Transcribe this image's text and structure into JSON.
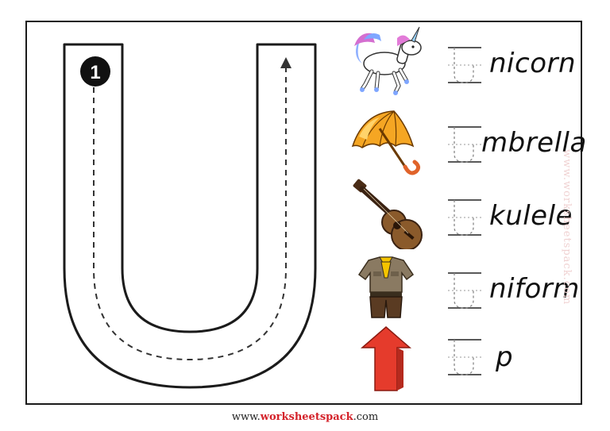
{
  "worksheet": {
    "step_number": "1",
    "watermark": "www.worksheetspack.com",
    "rows": [
      {
        "name": "unicorn",
        "icon": "unicorn-icon",
        "word": "nicorn"
      },
      {
        "name": "umbrella",
        "icon": "umbrella-icon",
        "word": "mbrella"
      },
      {
        "name": "ukulele",
        "icon": "ukulele-icon",
        "word": "kulele"
      },
      {
        "name": "uniform",
        "icon": "uniform-icon",
        "word": "niform"
      },
      {
        "name": "up",
        "icon": "up-arrow-icon",
        "word": "p"
      }
    ]
  },
  "footer": {
    "prefix": "www.",
    "brand": "worksheetspack",
    "suffix": ".com"
  },
  "colors": {
    "border": "#1b1b1b",
    "brand_red": "#d4222a",
    "umbrella_orange": "#f5a623",
    "arrow_red": "#e53b2c"
  }
}
